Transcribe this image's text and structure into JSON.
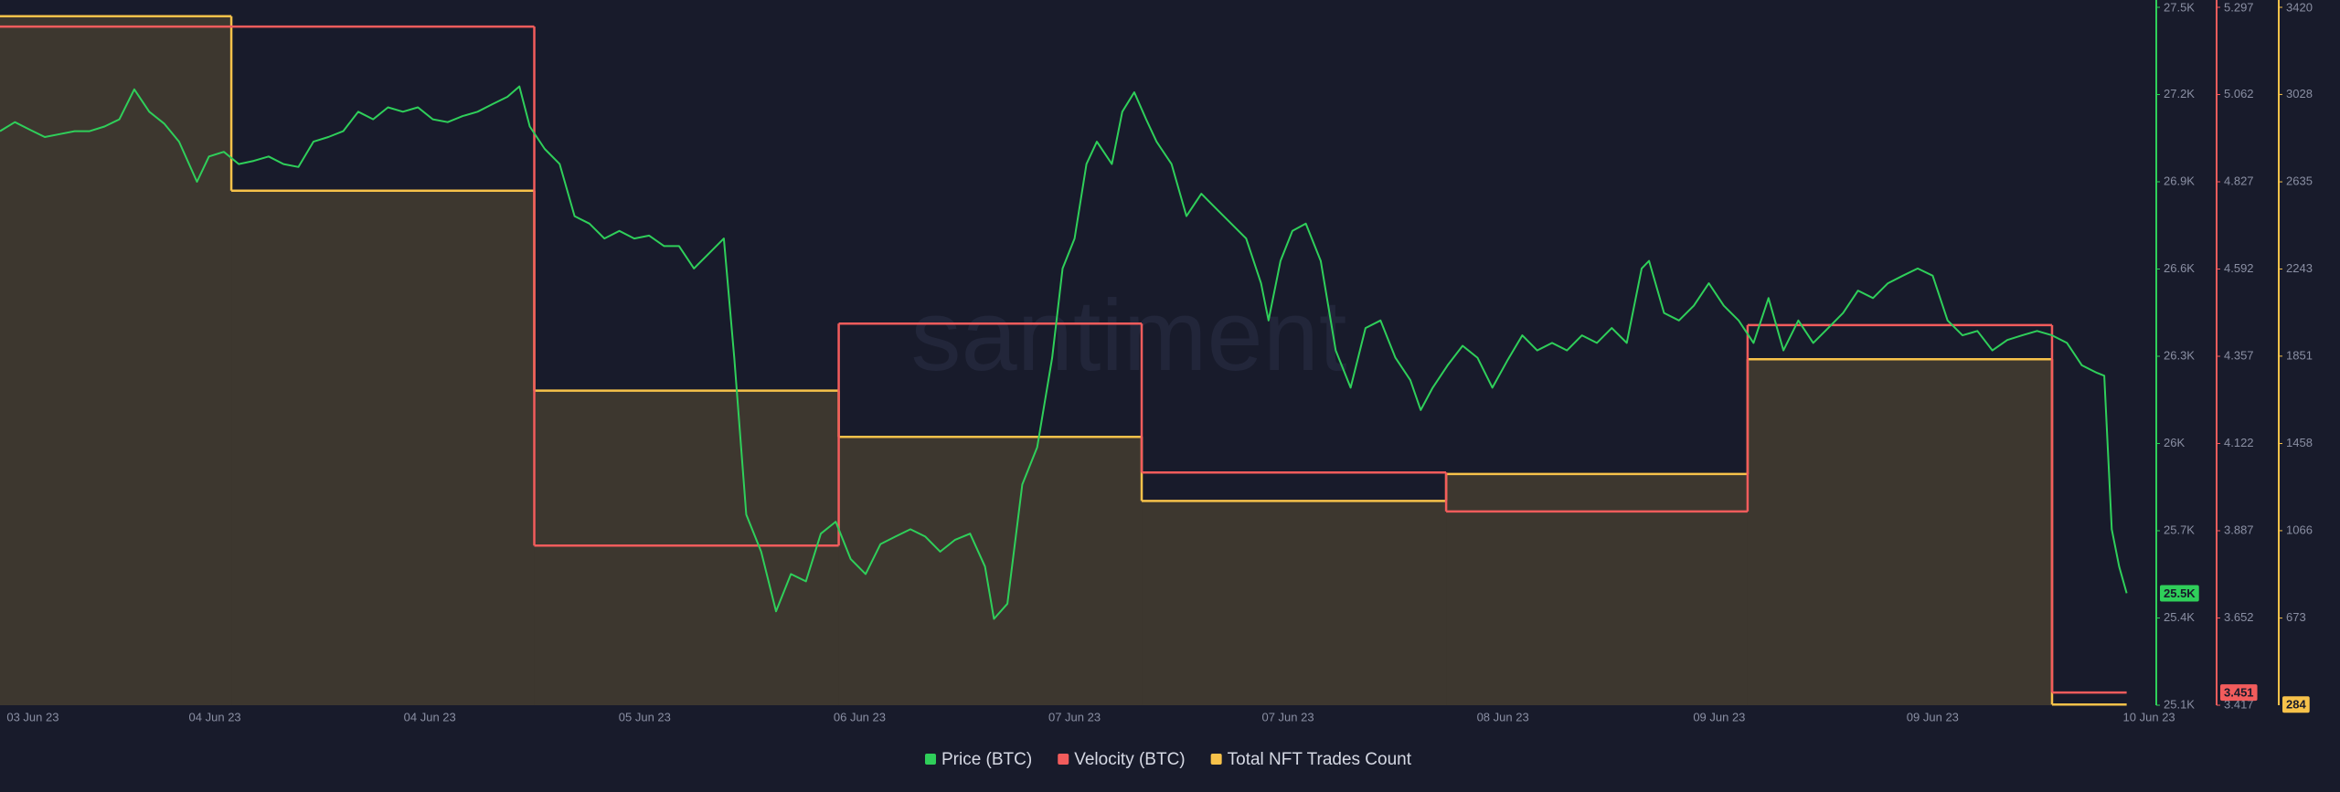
{
  "chart_data": {
    "type": "multi-axis-line",
    "watermark": "santiment",
    "xlim": [
      0,
      1443
    ],
    "xticks": [
      {
        "value": 22,
        "label": "03 Jun 23"
      },
      {
        "value": 144,
        "label": "04 Jun 23"
      },
      {
        "value": 288,
        "label": "04 Jun 23"
      },
      {
        "value": 432,
        "label": "05 Jun 23"
      },
      {
        "value": 576,
        "label": "06 Jun 23"
      },
      {
        "value": 720,
        "label": "07 Jun 23"
      },
      {
        "value": 863,
        "label": "07 Jun 23"
      },
      {
        "value": 1007,
        "label": "08 Jun 23"
      },
      {
        "value": 1152,
        "label": "09 Jun 23"
      },
      {
        "value": 1295,
        "label": "09 Jun 23"
      },
      {
        "value": 1440,
        "label": "10 Jun 23"
      }
    ],
    "ylim": [
      25100,
      27500
    ],
    "yticks": [
      {
        "value": 25100,
        "label": "25.1K"
      },
      {
        "value": 25400,
        "label": "25.4K"
      },
      {
        "value": 25700,
        "label": "25.7K"
      },
      {
        "value": 26000,
        "label": "26K"
      },
      {
        "value": 26300,
        "label": "26.3K"
      },
      {
        "value": 26600,
        "label": "26.6K"
      },
      {
        "value": 26900,
        "label": "26.9K"
      },
      {
        "value": 27200,
        "label": "27.2K"
      },
      {
        "value": 27500,
        "label": "27.5K"
      }
    ],
    "y2lim": [
      3.417,
      5.297
    ],
    "y2ticks": [
      3.417,
      3.652,
      3.887,
      4.122,
      4.357,
      4.592,
      4.827,
      5.062,
      5.297
    ],
    "y3lim": [
      281,
      3420
    ],
    "y3ticks": [
      673,
      1066,
      1458,
      1851,
      2243,
      2635,
      3028,
      3420
    ],
    "grid": false,
    "series": [
      {
        "name": "Price (BTC)",
        "color": "#2fcf5a",
        "axis": "y",
        "style": "line",
        "current_label": "25.5K",
        "x": [
          0,
          10,
          20,
          30,
          40,
          50,
          60,
          70,
          80,
          90,
          100,
          110,
          120,
          132,
          140,
          150,
          160,
          170,
          180,
          190,
          200,
          210,
          220,
          230,
          240,
          250,
          260,
          270,
          280,
          290,
          300,
          310,
          320,
          330,
          340,
          348,
          355,
          365,
          375,
          385,
          395,
          405,
          415,
          425,
          435,
          445,
          455,
          465,
          475,
          485,
          492,
          500,
          510,
          520,
          530,
          540,
          550,
          560,
          570,
          580,
          590,
          600,
          610,
          620,
          630,
          640,
          650,
          660,
          666,
          675,
          685,
          695,
          705,
          712,
          720,
          728,
          735,
          745,
          752,
          760,
          768,
          775,
          785,
          795,
          805,
          815,
          825,
          835,
          845,
          850,
          858,
          866,
          875,
          885,
          895,
          905,
          915,
          925,
          935,
          945,
          952,
          960,
          970,
          980,
          990,
          1000,
          1010,
          1020,
          1030,
          1040,
          1050,
          1060,
          1070,
          1080,
          1090,
          1100,
          1105,
          1115,
          1125,
          1135,
          1145,
          1155,
          1165,
          1175,
          1185,
          1195,
          1205,
          1215,
          1225,
          1235,
          1245,
          1255,
          1265,
          1275,
          1285,
          1295,
          1305,
          1315,
          1325,
          1335,
          1345,
          1355,
          1365,
          1375,
          1385,
          1395,
          1405,
          1410,
          1415,
          1420,
          1425
        ],
        "values": [
          27074,
          27105,
          27079,
          27054,
          27064,
          27074,
          27074,
          27090,
          27115,
          27218,
          27141,
          27100,
          27038,
          26900,
          26987,
          27003,
          26961,
          26972,
          26987,
          26961,
          26951,
          27038,
          27054,
          27074,
          27141,
          27115,
          27156,
          27141,
          27156,
          27115,
          27105,
          27126,
          27141,
          27167,
          27192,
          27228,
          27090,
          27013,
          26961,
          26782,
          26756,
          26705,
          26731,
          26705,
          26715,
          26679,
          26679,
          26602,
          26653,
          26705,
          26295,
          25756,
          25628,
          25423,
          25551,
          25526,
          25690,
          25731,
          25603,
          25551,
          25654,
          25680,
          25705,
          25680,
          25628,
          25669,
          25690,
          25577,
          25397,
          25449,
          25859,
          25987,
          26295,
          26602,
          26705,
          26961,
          27038,
          26961,
          27141,
          27208,
          27115,
          27038,
          26961,
          26782,
          26859,
          26807,
          26756,
          26705,
          26551,
          26423,
          26628,
          26731,
          26756,
          26628,
          26320,
          26192,
          26397,
          26423,
          26295,
          26218,
          26115,
          26192,
          26269,
          26336,
          26295,
          26192,
          26285,
          26372,
          26320,
          26346,
          26320,
          26372,
          26346,
          26397,
          26346,
          26602,
          26628,
          26449,
          26423,
          26474,
          26551,
          26474,
          26423,
          26346,
          26500,
          26320,
          26423,
          26346,
          26397,
          26449,
          26526,
          26500,
          26551,
          26577,
          26602,
          26577,
          26423,
          26372,
          26387,
          26320,
          26356,
          26372,
          26387,
          26372,
          26346,
          26269,
          26243,
          26233,
          25705,
          25577,
          25485
        ]
      },
      {
        "name": "Velocity (BTC)",
        "color": "#f25c5c",
        "axis": "y2",
        "style": "step",
        "current_label": "3.451",
        "x": [
          0,
          358,
          562,
          765,
          969,
          1171,
          1375
        ],
        "values": [
          5.245,
          3.847,
          4.445,
          4.044,
          3.939,
          4.441,
          3.451
        ]
      },
      {
        "name": "Total NFT Trades Count",
        "color": "#f7c24a",
        "axis": "y3",
        "style": "step-area",
        "current_label": "284",
        "x": [
          0,
          155,
          358,
          562,
          765,
          969,
          1171,
          1375
        ],
        "values": [
          3380,
          2595,
          1696,
          1488,
          1200,
          1321,
          1837,
          284
        ]
      }
    ]
  }
}
